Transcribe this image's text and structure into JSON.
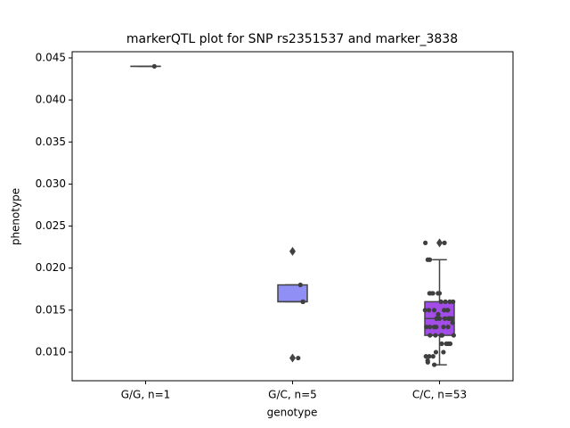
{
  "chart_data": {
    "type": "box",
    "title": "markerQTL plot for SNP rs2351537 and marker_3838",
    "xlabel": "genotype",
    "ylabel": "phenotype",
    "categories": [
      "G/G, n=1",
      "G/C, n=5",
      "C/C, n=53"
    ],
    "ylim": [
      0.0066,
      0.04574
    ],
    "yticks": [
      {
        "value": 0.01,
        "label": "0.010"
      },
      0.015,
      {
        "value": 0.02,
        "label": "0.020"
      },
      0.025,
      {
        "value": 0.03,
        "label": "0.030"
      },
      0.035,
      {
        "value": 0.04,
        "label": "0.040"
      },
      0.045
    ],
    "point_color": "#3f3f3f",
    "boxes": [
      {
        "color": "#5b5bd6",
        "q1": 0.044,
        "median": 0.044,
        "q3": 0.044,
        "whislo": 0.044,
        "whishi": 0.044,
        "fliers": []
      },
      {
        "color": "#8f8ff5",
        "q1": 0.016,
        "median": 0.016,
        "q3": 0.018,
        "whislo": 0.016,
        "whishi": 0.018,
        "fliers": [
          0.022,
          0.0093
        ]
      },
      {
        "color": "#a24de8",
        "q1": 0.012,
        "median": 0.014,
        "q3": 0.016,
        "whislo": 0.0085,
        "whishi": 0.021,
        "fliers": [
          0.023
        ]
      }
    ],
    "points": [
      [
        0.044
      ],
      [
        0.022,
        0.018,
        0.016,
        0.016,
        0.0093
      ],
      [
        0.023,
        0.023,
        0.021,
        0.021,
        0.017,
        0.017,
        0.017,
        0.017,
        0.017,
        0.016,
        0.016,
        0.016,
        0.016,
        0.015,
        0.015,
        0.015,
        0.015,
        0.015,
        0.015,
        0.0145,
        0.014,
        0.014,
        0.014,
        0.014,
        0.014,
        0.014,
        0.014,
        0.014,
        0.0135,
        0.013,
        0.013,
        0.013,
        0.013,
        0.013,
        0.013,
        0.013,
        0.012,
        0.012,
        0.012,
        0.012,
        0.012,
        0.011,
        0.011,
        0.011,
        0.011,
        0.01,
        0.01,
        0.0095,
        0.0095,
        0.0095,
        0.009,
        0.0088,
        0.0085
      ]
    ]
  }
}
